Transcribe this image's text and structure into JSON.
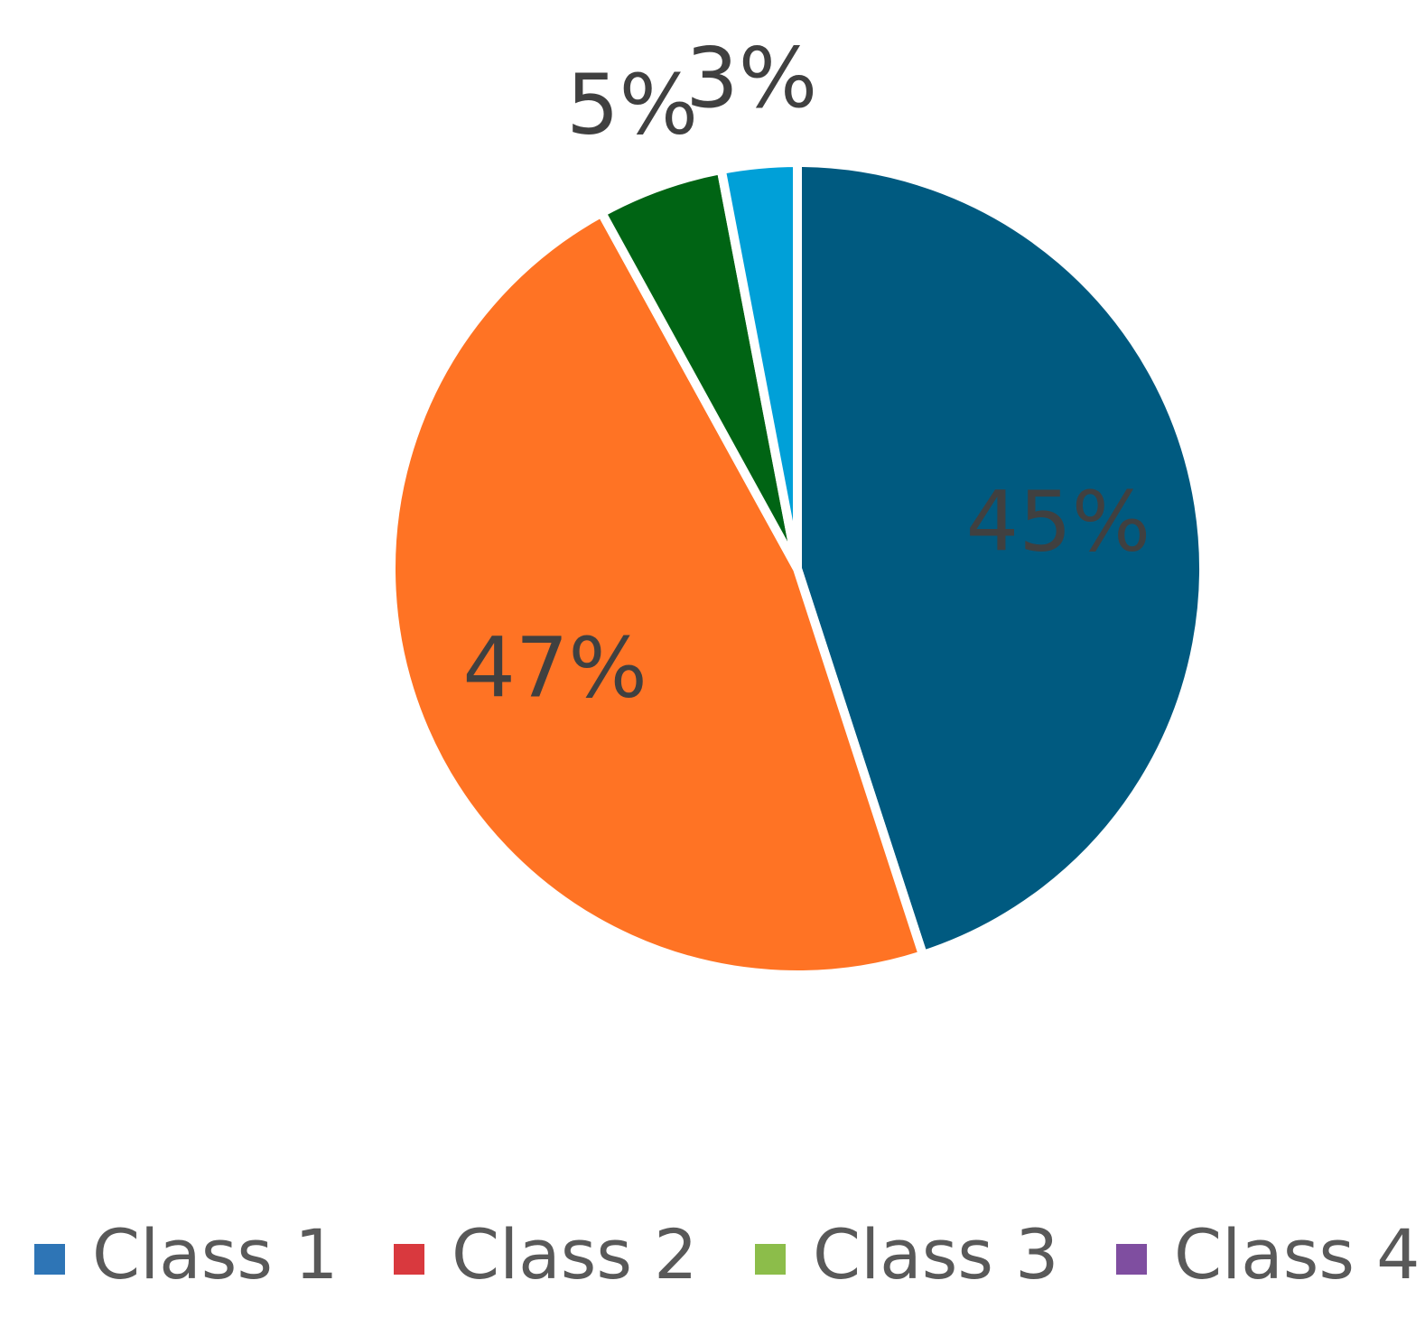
{
  "chart_data": {
    "type": "pie",
    "categories": [
      "Class 1",
      "Class 2",
      "Class 3",
      "Class 4"
    ],
    "values": [
      45,
      47,
      5,
      3
    ],
    "value_labels": [
      "45%",
      "47%",
      "5%",
      "3%"
    ],
    "colors": [
      "#005a80",
      "#ff7324",
      "#006414",
      "#00a0d8"
    ],
    "legend_colors": [
      "#2e75b6",
      "#d9393e",
      "#8cbd4a",
      "#7f4ea0"
    ],
    "legend": "bottom"
  }
}
